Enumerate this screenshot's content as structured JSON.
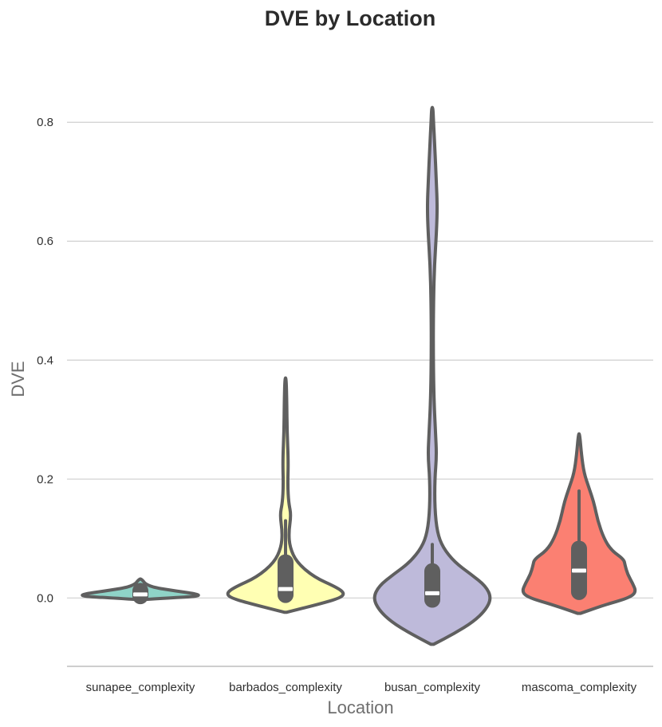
{
  "chart_data": {
    "type": "violin",
    "title": "DVE by Location",
    "xlabel": "Location",
    "ylabel": "DVE",
    "ylim": [
      -0.115,
      0.96
    ],
    "yticks": [
      0.0,
      0.2,
      0.4,
      0.6,
      0.8
    ],
    "ytick_labels": [
      "0.0",
      "0.2",
      "0.4",
      "0.6",
      "0.8"
    ],
    "grid": true,
    "categories": [
      "sunapee_complexity",
      "barbados_complexity",
      "busan_complexity",
      "mascoma_complexity"
    ],
    "series": [
      {
        "category": "sunapee_complexity",
        "color": "#8fd3c7",
        "min": -0.003,
        "max": 0.032,
        "q1": 0.003,
        "median": 0.006,
        "q3": 0.012,
        "whisker_low": -0.003,
        "whisker_high": 0.022,
        "density": [
          [
            -0.003,
            0.02
          ],
          [
            0.0,
            0.45
          ],
          [
            0.003,
            0.96
          ],
          [
            0.007,
            0.9
          ],
          [
            0.012,
            0.55
          ],
          [
            0.018,
            0.2
          ],
          [
            0.024,
            0.08
          ],
          [
            0.028,
            0.05
          ],
          [
            0.032,
            0.01
          ]
        ]
      },
      {
        "category": "barbados_complexity",
        "color": "#ffffb3",
        "min": -0.024,
        "max": 0.37,
        "q1": 0.005,
        "median": 0.015,
        "q3": 0.06,
        "whisker_low": 0.0,
        "whisker_high": 0.13,
        "density": [
          [
            -0.024,
            0.02
          ],
          [
            -0.01,
            0.55
          ],
          [
            0.0,
            0.88
          ],
          [
            0.008,
            0.95
          ],
          [
            0.018,
            0.82
          ],
          [
            0.035,
            0.46
          ],
          [
            0.06,
            0.18
          ],
          [
            0.085,
            0.07
          ],
          [
            0.11,
            0.05
          ],
          [
            0.14,
            0.09
          ],
          [
            0.16,
            0.05
          ],
          [
            0.19,
            0.035
          ],
          [
            0.23,
            0.045
          ],
          [
            0.28,
            0.025
          ],
          [
            0.33,
            0.02
          ],
          [
            0.37,
            0.01
          ]
        ]
      },
      {
        "category": "busan_complexity",
        "color": "#bebada",
        "min": -0.078,
        "max": 0.825,
        "q1": -0.003,
        "median": 0.008,
        "q3": 0.045,
        "whisker_low": -0.005,
        "whisker_high": 0.09,
        "density": [
          [
            -0.078,
            0.02
          ],
          [
            -0.06,
            0.35
          ],
          [
            -0.04,
            0.66
          ],
          [
            -0.02,
            0.86
          ],
          [
            0.0,
            0.95
          ],
          [
            0.02,
            0.86
          ],
          [
            0.04,
            0.62
          ],
          [
            0.06,
            0.36
          ],
          [
            0.085,
            0.17
          ],
          [
            0.11,
            0.08
          ],
          [
            0.15,
            0.04
          ],
          [
            0.2,
            0.04
          ],
          [
            0.24,
            0.07
          ],
          [
            0.28,
            0.05
          ],
          [
            0.34,
            0.025
          ],
          [
            0.42,
            0.015
          ],
          [
            0.5,
            0.02
          ],
          [
            0.56,
            0.035
          ],
          [
            0.62,
            0.07
          ],
          [
            0.66,
            0.08
          ],
          [
            0.7,
            0.065
          ],
          [
            0.76,
            0.04
          ],
          [
            0.8,
            0.02
          ],
          [
            0.825,
            0.01
          ]
        ]
      },
      {
        "category": "mascoma_complexity",
        "color": "#fb8072",
        "min": -0.026,
        "max": 0.276,
        "q1": 0.01,
        "median": 0.046,
        "q3": 0.083,
        "whisker_low": 0.0,
        "whisker_high": 0.18,
        "density": [
          [
            -0.026,
            0.02
          ],
          [
            -0.012,
            0.4
          ],
          [
            0.0,
            0.8
          ],
          [
            0.01,
            0.92
          ],
          [
            0.025,
            0.86
          ],
          [
            0.04,
            0.78
          ],
          [
            0.055,
            0.74
          ],
          [
            0.065,
            0.72
          ],
          [
            0.08,
            0.52
          ],
          [
            0.1,
            0.4
          ],
          [
            0.13,
            0.3
          ],
          [
            0.16,
            0.24
          ],
          [
            0.185,
            0.16
          ],
          [
            0.21,
            0.08
          ],
          [
            0.24,
            0.04
          ],
          [
            0.276,
            0.01
          ]
        ]
      }
    ]
  }
}
